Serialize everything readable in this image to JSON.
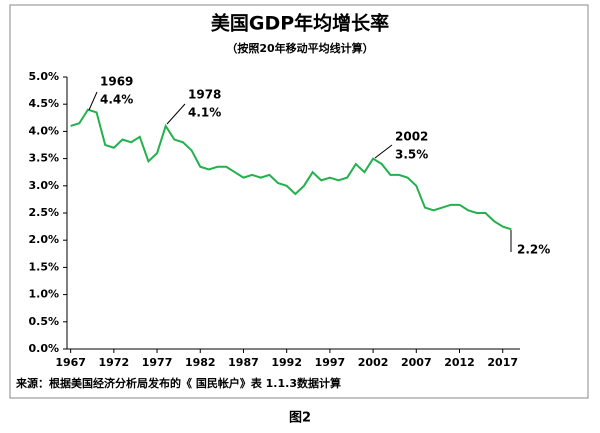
{
  "chart_data": {
    "type": "line",
    "title": "美国GDP年均增长率",
    "subtitle": "（按照20年移动平均线计算）",
    "source": "来源：根据美国经济分析局发布的《 国民帐户》表 1.1.3数据计算",
    "caption": "图2",
    "x": [
      1967,
      1968,
      1969,
      1970,
      1971,
      1972,
      1973,
      1974,
      1975,
      1976,
      1977,
      1978,
      1979,
      1980,
      1981,
      1982,
      1983,
      1984,
      1985,
      1986,
      1987,
      1988,
      1989,
      1990,
      1991,
      1992,
      1993,
      1994,
      1995,
      1996,
      1997,
      1998,
      1999,
      2000,
      2001,
      2002,
      2003,
      2004,
      2005,
      2006,
      2007,
      2008,
      2009,
      2010,
      2011,
      2012,
      2013,
      2014,
      2015,
      2016,
      2017,
      2018
    ],
    "series": [
      {
        "color": "#22b14c",
        "values": [
          4.1,
          4.15,
          4.4,
          4.35,
          3.75,
          3.7,
          3.85,
          3.8,
          3.9,
          3.45,
          3.6,
          4.1,
          3.85,
          3.8,
          3.65,
          3.35,
          3.3,
          3.35,
          3.35,
          3.25,
          3.15,
          3.2,
          3.15,
          3.2,
          3.05,
          3.0,
          2.85,
          3.0,
          3.25,
          3.1,
          3.15,
          3.1,
          3.15,
          3.4,
          3.25,
          3.5,
          3.4,
          3.2,
          3.2,
          3.15,
          3.0,
          2.6,
          2.55,
          2.6,
          2.65,
          2.65,
          2.55,
          2.5,
          2.5,
          2.35,
          2.25,
          2.2
        ]
      }
    ],
    "annotations": [
      {
        "year": "1969",
        "value": "4.4%"
      },
      {
        "year": "1978",
        "value": "4.1%"
      },
      {
        "year": "2002",
        "value": "3.5%"
      },
      {
        "value": "2.2%"
      }
    ],
    "xlim": [
      1966,
      2019
    ],
    "xticks": [
      1967,
      1972,
      1977,
      1982,
      1987,
      1992,
      1997,
      2002,
      2007,
      2012,
      2017
    ],
    "ylim": [
      0,
      5
    ],
    "yticks": [
      {
        "value": 0,
        "label": "0.0%"
      },
      {
        "value": 0.5,
        "label": "0.5%"
      },
      {
        "value": 1,
        "label": "1.0%"
      },
      {
        "value": 1.5,
        "label": "1.5%"
      },
      {
        "value": 2,
        "label": "2.0%"
      },
      {
        "value": 2.5,
        "label": "2.5%"
      },
      {
        "value": 3,
        "label": "3.0%"
      },
      {
        "value": 3.5,
        "label": "3.5%"
      },
      {
        "value": 4,
        "label": "4.0%"
      },
      {
        "value": 4.5,
        "label": "4.5%"
      },
      {
        "value": 5,
        "label": "5.0%"
      }
    ],
    "grid": false
  }
}
